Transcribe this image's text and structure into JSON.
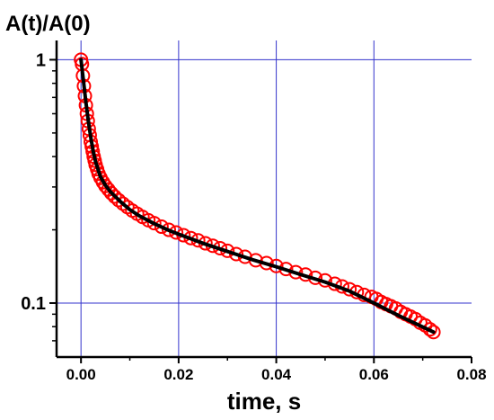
{
  "chart_data": {
    "type": "scatter",
    "ylabel": "A(t)/A(0)",
    "xlabel": "time, s",
    "xlim": [
      -0.005,
      0.08
    ],
    "ylim": [
      0.06,
      1.2
    ],
    "y_scale": "log",
    "grid": true,
    "x_ticks": [
      "0.00",
      "0.02",
      "0.04",
      "0.06",
      "0.08"
    ],
    "y_ticks": [
      "0.1",
      "1"
    ],
    "colors": {
      "markers": "#ff0000",
      "fit": "#000000",
      "grid": "#3333cc"
    },
    "series": [
      {
        "kind": "markers",
        "x": [
          0.0,
          0.0002,
          0.0004,
          0.0006,
          0.0008,
          0.001,
          0.0012,
          0.0014,
          0.0016,
          0.0018,
          0.002,
          0.0022,
          0.0024,
          0.0026,
          0.0028,
          0.003,
          0.0033,
          0.0036,
          0.004,
          0.0045,
          0.005,
          0.0056,
          0.0062,
          0.0069,
          0.0077,
          0.0086,
          0.0095,
          0.0105,
          0.0115,
          0.0126,
          0.0138,
          0.015,
          0.0165,
          0.018,
          0.0195,
          0.021,
          0.0225,
          0.024,
          0.0255,
          0.027,
          0.0285,
          0.03,
          0.0318,
          0.0336,
          0.0358,
          0.038,
          0.04,
          0.042,
          0.044,
          0.046,
          0.048,
          0.05,
          0.052,
          0.0535,
          0.055,
          0.0565,
          0.058,
          0.0595,
          0.0605,
          0.0615,
          0.0625,
          0.0635,
          0.0645,
          0.0655,
          0.0665,
          0.0675,
          0.0685,
          0.0695,
          0.0705,
          0.0715,
          0.0722
        ],
        "y": [
          1.0,
          0.96,
          0.86,
          0.78,
          0.71,
          0.65,
          0.6,
          0.56,
          0.52,
          0.49,
          0.46,
          0.44,
          0.42,
          0.4,
          0.385,
          0.37,
          0.355,
          0.34,
          0.327,
          0.314,
          0.303,
          0.293,
          0.283,
          0.274,
          0.265,
          0.256,
          0.248,
          0.24,
          0.233,
          0.226,
          0.219,
          0.213,
          0.206,
          0.2,
          0.195,
          0.19,
          0.185,
          0.181,
          0.176,
          0.172,
          0.168,
          0.164,
          0.159,
          0.155,
          0.15,
          0.146,
          0.142,
          0.138,
          0.134,
          0.131,
          0.127,
          0.124,
          0.12,
          0.117,
          0.114,
          0.111,
          0.108,
          0.106,
          0.104,
          0.101,
          0.099,
          0.097,
          0.095,
          0.092,
          0.09,
          0.088,
          0.086,
          0.083,
          0.081,
          0.078,
          0.076
        ]
      },
      {
        "kind": "line",
        "x": [
          0.0,
          0.0005,
          0.001,
          0.0015,
          0.002,
          0.0025,
          0.003,
          0.004,
          0.005,
          0.006,
          0.008,
          0.01,
          0.012,
          0.015,
          0.018,
          0.02,
          0.025,
          0.03,
          0.035,
          0.04,
          0.045,
          0.05,
          0.055,
          0.06,
          0.065,
          0.0722
        ],
        "y": [
          1.0,
          0.82,
          0.67,
          0.56,
          0.48,
          0.42,
          0.38,
          0.33,
          0.305,
          0.287,
          0.262,
          0.242,
          0.228,
          0.212,
          0.199,
          0.192,
          0.176,
          0.163,
          0.151,
          0.141,
          0.131,
          0.122,
          0.112,
          0.1,
          0.089,
          0.076
        ]
      }
    ]
  }
}
